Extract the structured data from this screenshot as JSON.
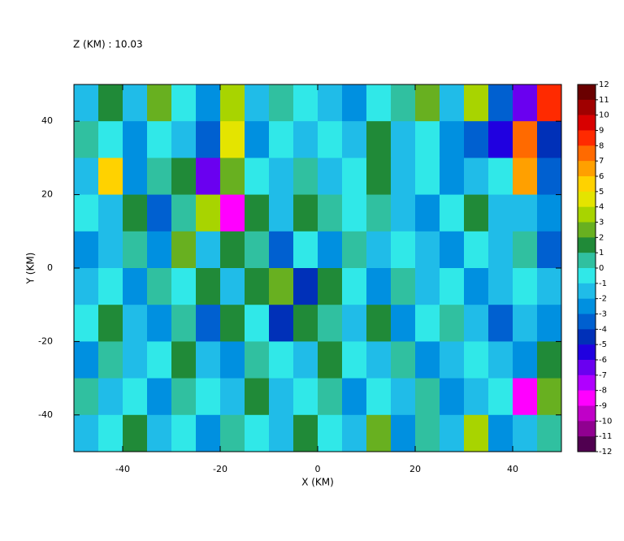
{
  "chart_data": {
    "type": "heatmap",
    "title": "Z (KM) : 10.03",
    "xlabel": "X (KM)",
    "ylabel": "Y (KM)",
    "x": [
      -47.5,
      -42.5,
      -37.5,
      -32.5,
      -27.5,
      -22.5,
      -17.5,
      -12.5,
      -7.5,
      -2.5,
      2.5,
      7.5,
      12.5,
      17.5,
      22.5,
      27.5,
      32.5,
      37.5,
      42.5,
      47.5
    ],
    "y": [
      45,
      35,
      25,
      15,
      5,
      -5,
      -15,
      -25,
      -35,
      -45
    ],
    "z": [
      [
        -1,
        2,
        -1,
        3,
        0,
        -2,
        4,
        -1,
        1,
        0,
        -1,
        -2,
        0,
        1,
        3,
        -1,
        4,
        -3,
        -6,
        9
      ],
      [
        1,
        0,
        -2,
        0,
        -1,
        -3,
        5,
        -2,
        0,
        -1,
        0,
        -1,
        2,
        -1,
        0,
        -2,
        -3,
        -5,
        8,
        -4
      ],
      [
        -1,
        6,
        -2,
        1,
        2,
        -6,
        3,
        0,
        -1,
        1,
        -1,
        0,
        2,
        -1,
        0,
        -2,
        -1,
        0,
        7,
        -3
      ],
      [
        0,
        -1,
        2,
        -3,
        1,
        4,
        -8,
        2,
        -1,
        2,
        1,
        0,
        1,
        -1,
        -2,
        0,
        2,
        -1,
        -1,
        -2
      ],
      [
        -2,
        -1,
        1,
        -2,
        3,
        -1,
        2,
        1,
        -3,
        0,
        -2,
        1,
        -1,
        0,
        -1,
        -2,
        0,
        -1,
        1,
        -3
      ],
      [
        -1,
        0,
        -2,
        1,
        0,
        2,
        -1,
        2,
        3,
        -4,
        2,
        0,
        -2,
        1,
        -1,
        0,
        -2,
        -1,
        0,
        -1
      ],
      [
        0,
        2,
        -1,
        -2,
        1,
        -3,
        2,
        0,
        -4,
        2,
        1,
        -1,
        2,
        -2,
        0,
        1,
        -1,
        -3,
        -1,
        -2
      ],
      [
        -2,
        1,
        -1,
        0,
        2,
        -1,
        -2,
        1,
        0,
        -1,
        2,
        0,
        -1,
        1,
        -2,
        -1,
        0,
        -1,
        -2,
        2
      ],
      [
        1,
        -1,
        0,
        -2,
        1,
        0,
        -1,
        2,
        -1,
        0,
        1,
        -2,
        0,
        -1,
        1,
        -2,
        -1,
        0,
        -8,
        3
      ],
      [
        -1,
        0,
        2,
        -1,
        0,
        -2,
        1,
        0,
        -1,
        2,
        0,
        -1,
        3,
        -2,
        1,
        -1,
        4,
        -2,
        -1,
        1
      ]
    ],
    "xlim": [
      -50,
      50
    ],
    "ylim": [
      -50,
      50
    ],
    "xticks": [
      -40,
      -20,
      0,
      20,
      40
    ],
    "yticks": [
      -40,
      -20,
      0,
      20,
      40
    ],
    "colorbar_ticks": [
      12,
      11,
      10,
      9,
      8,
      7,
      6,
      5,
      4,
      3,
      2,
      1,
      0,
      -1,
      -2,
      -3,
      -4,
      -5,
      -6,
      -7,
      -8,
      -9,
      -10,
      -11,
      -12
    ],
    "colorbar_colors": [
      "#6a0000",
      "#a00000",
      "#d80000",
      "#ff2a00",
      "#ff6a00",
      "#ffa000",
      "#ffd200",
      "#e4e400",
      "#a8d400",
      "#68b020",
      "#208a38",
      "#30c0a0",
      "#30e8e8",
      "#20bce8",
      "#0090e0",
      "#0060d0",
      "#0030b8",
      "#2000e0",
      "#6a00f0",
      "#b000ff",
      "#ff00ff",
      "#c000c8",
      "#900090",
      "#500050"
    ]
  }
}
